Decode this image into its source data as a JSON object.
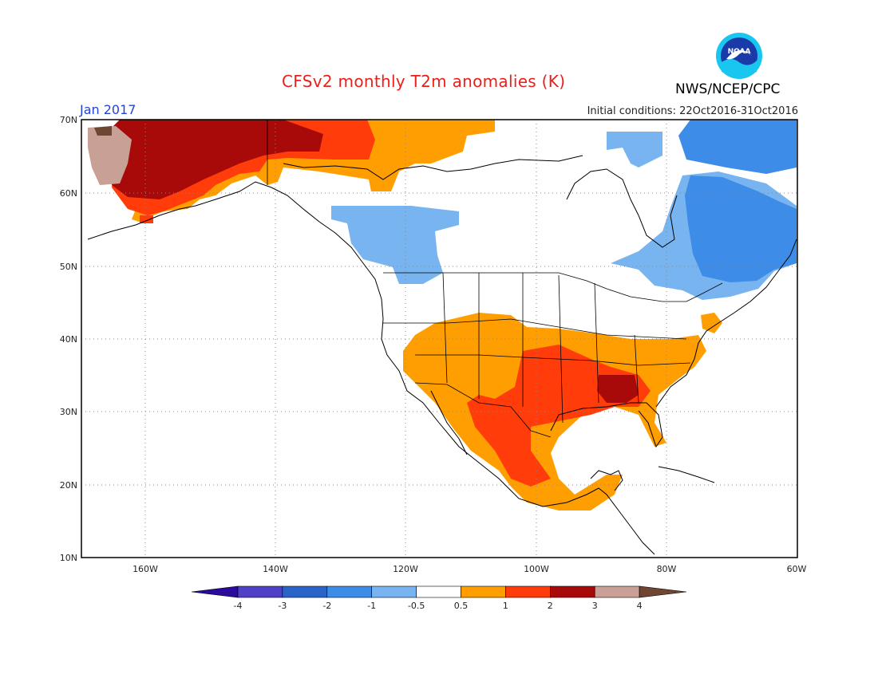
{
  "header": {
    "title": "CFSv2 monthly T2m anomalies (K)",
    "month": "Jan 2017",
    "initial_conditions": "Initial conditions: 22Oct2016-31Oct2016",
    "agency": "NWS/NCEP/CPC",
    "logo_text": "NOAA"
  },
  "axes": {
    "lon_ticks": [
      "160W",
      "140W",
      "120W",
      "100W",
      "80W",
      "60W"
    ],
    "lat_ticks": [
      "70N",
      "60N",
      "50N",
      "40N",
      "30N",
      "20N",
      "10N"
    ]
  },
  "colorbar": {
    "labels": [
      "-4",
      "-3",
      "-2",
      "-1",
      "-0.5",
      "0.5",
      "1",
      "2",
      "3",
      "4"
    ],
    "colors": [
      "#2b0a9e",
      "#5040c8",
      "#2a64c8",
      "#3c8ce8",
      "#78b4f0",
      "#ffffff",
      "#ff9e00",
      "#ff3c0a",
      "#a80a0a",
      "#c8a096",
      "#6e4632"
    ]
  },
  "colors": {
    "warm_05_1": "#ff9e00",
    "warm_1_2": "#ff3c0a",
    "warm_2_3": "#a80a0a",
    "warm_3_4": "#c8a096",
    "warm_gt4": "#6e4632",
    "cool_m1_m05": "#78b4f0",
    "cool_m2_m1": "#3c8ce8",
    "title": "#e8201c",
    "month": "#2244dd"
  }
}
